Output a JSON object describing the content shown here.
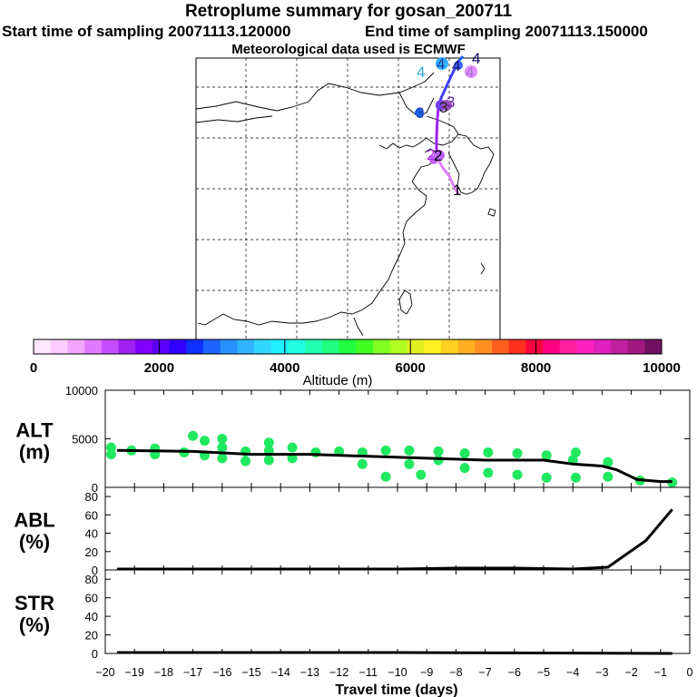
{
  "header": {
    "title": "Retroplume summary for gosan_200711",
    "start_label": "Start time of sampling 20071113.120000",
    "end_label": "End time of sampling 20071113.150000",
    "met_label": "Meteorological data used is ECMWF"
  },
  "colorbar": {
    "label": "Altitude (m)",
    "ticks": [
      "0",
      "2000",
      "4000",
      "6000",
      "8000",
      "10000"
    ],
    "colors": [
      "#ffe6ff",
      "#ffccff",
      "#f2a6ff",
      "#e07aff",
      "#c64dff",
      "#a020f0",
      "#8000ff",
      "#5a00ff",
      "#3000ff",
      "#1030ff",
      "#1e64ff",
      "#2890ff",
      "#30b4ff",
      "#30d8ff",
      "#20f0ff",
      "#20ffe0",
      "#20ffb0",
      "#20ff80",
      "#20ff40",
      "#40ff20",
      "#80ff20",
      "#b0ff20",
      "#e0f020",
      "#fff020",
      "#ffd020",
      "#ffb020",
      "#ff9020",
      "#ff6020",
      "#ff3020",
      "#ff0040",
      "#ff0080",
      "#ff20a0",
      "#ff20c0",
      "#e020c0",
      "#c020a0",
      "#a01880",
      "#701060"
    ]
  },
  "map": {
    "markers": [
      "1",
      "2",
      "3",
      "4"
    ],
    "trajectory_colors": {
      "segment1": "#e080ff",
      "segment2": "#a020f0",
      "segment3": "#4040ff",
      "segment4": "#2060ff"
    }
  },
  "chart_data": [
    {
      "type": "scatter",
      "name": "ALT",
      "ylabel_line1": "ALT",
      "ylabel_line2": "(m)",
      "ylim": [
        0,
        10000
      ],
      "yticks": [
        "10000",
        "5000",
        "0"
      ],
      "ytick_values": [
        10000,
        5000,
        0
      ],
      "marker_color": "#20e860",
      "points": [
        {
          "x": -19.8,
          "y": 4100
        },
        {
          "x": -19.8,
          "y": 3400
        },
        {
          "x": -19.1,
          "y": 3800
        },
        {
          "x": -18.3,
          "y": 4000
        },
        {
          "x": -18.3,
          "y": 3400
        },
        {
          "x": -17.3,
          "y": 3600
        },
        {
          "x": -17.0,
          "y": 5300
        },
        {
          "x": -16.6,
          "y": 3300
        },
        {
          "x": -16.6,
          "y": 4800
        },
        {
          "x": -16.0,
          "y": 4100
        },
        {
          "x": -16.0,
          "y": 3000
        },
        {
          "x": -16.0,
          "y": 5000
        },
        {
          "x": -15.2,
          "y": 3700
        },
        {
          "x": -15.2,
          "y": 2700
        },
        {
          "x": -14.4,
          "y": 3800
        },
        {
          "x": -14.4,
          "y": 2800
        },
        {
          "x": -14.4,
          "y": 4600
        },
        {
          "x": -13.6,
          "y": 4100
        },
        {
          "x": -13.6,
          "y": 3000
        },
        {
          "x": -12.8,
          "y": 3600
        },
        {
          "x": -12.0,
          "y": 3700
        },
        {
          "x": -11.2,
          "y": 3600
        },
        {
          "x": -11.2,
          "y": 2400
        },
        {
          "x": -10.4,
          "y": 3800
        },
        {
          "x": -10.4,
          "y": 1100
        },
        {
          "x": -9.6,
          "y": 3800
        },
        {
          "x": -9.6,
          "y": 2400
        },
        {
          "x": -9.2,
          "y": 1300
        },
        {
          "x": -8.6,
          "y": 3700
        },
        {
          "x": -8.6,
          "y": 2800
        },
        {
          "x": -7.7,
          "y": 3500
        },
        {
          "x": -7.7,
          "y": 2000
        },
        {
          "x": -6.9,
          "y": 3600
        },
        {
          "x": -6.9,
          "y": 1500
        },
        {
          "x": -5.9,
          "y": 3500
        },
        {
          "x": -5.9,
          "y": 1300
        },
        {
          "x": -4.9,
          "y": 3300
        },
        {
          "x": -4.9,
          "y": 1000
        },
        {
          "x": -4.0,
          "y": 2800
        },
        {
          "x": -3.9,
          "y": 1000
        },
        {
          "x": -3.9,
          "y": 3600
        },
        {
          "x": -2.8,
          "y": 2600
        },
        {
          "x": -2.8,
          "y": 1100
        },
        {
          "x": -1.7,
          "y": 700
        },
        {
          "x": -0.6,
          "y": 500
        }
      ],
      "line": {
        "x": [
          -19.6,
          -17.0,
          -15.0,
          -13.0,
          -11.0,
          -9.0,
          -7.0,
          -5.0,
          -4.0,
          -3.0,
          -2.5,
          -1.8,
          -1.0,
          -0.6
        ],
        "y": [
          3800,
          3700,
          3400,
          3400,
          3200,
          3000,
          2800,
          2800,
          2400,
          2200,
          1800,
          800,
          600,
          600
        ]
      }
    },
    {
      "type": "line",
      "name": "ABL",
      "ylabel_line1": "ABL",
      "ylabel_line2": "(%)",
      "ylim": [
        0,
        90
      ],
      "yticks": [
        "80",
        "60",
        "40",
        "20",
        "0"
      ],
      "ytick_values": [
        80,
        60,
        40,
        20,
        0
      ],
      "x": [
        -19.6,
        -10.0,
        -8.0,
        -6.0,
        -4.0,
        -2.8,
        -1.5,
        -0.6
      ],
      "y": [
        1,
        1,
        2,
        2,
        1,
        3,
        32,
        66
      ]
    },
    {
      "type": "line",
      "name": "STR",
      "ylabel_line1": "STR",
      "ylabel_line2": "(%)",
      "ylim": [
        0,
        90
      ],
      "yticks": [
        "80",
        "60",
        "40",
        "20",
        "0"
      ],
      "ytick_values": [
        80,
        60,
        40,
        20,
        0
      ],
      "x": [
        -19.6,
        -10.0,
        -0.6
      ],
      "y": [
        1,
        1,
        0
      ]
    }
  ],
  "xaxis": {
    "label": "Travel time (days)",
    "xlim": [
      -20,
      0
    ],
    "ticks": [
      "−20",
      "−19",
      "−18",
      "−17",
      "−16",
      "−15",
      "−14",
      "−13",
      "−12",
      "−11",
      "−10",
      "−9",
      "−8",
      "−7",
      "−6",
      "−5",
      "−4",
      "−3",
      "−2",
      "−1",
      "0"
    ],
    "tick_values": [
      -20,
      -19,
      -18,
      -17,
      -16,
      -15,
      -14,
      -13,
      -12,
      -11,
      -10,
      -9,
      -8,
      -7,
      -6,
      -5,
      -4,
      -3,
      -2,
      -1,
      0
    ]
  }
}
